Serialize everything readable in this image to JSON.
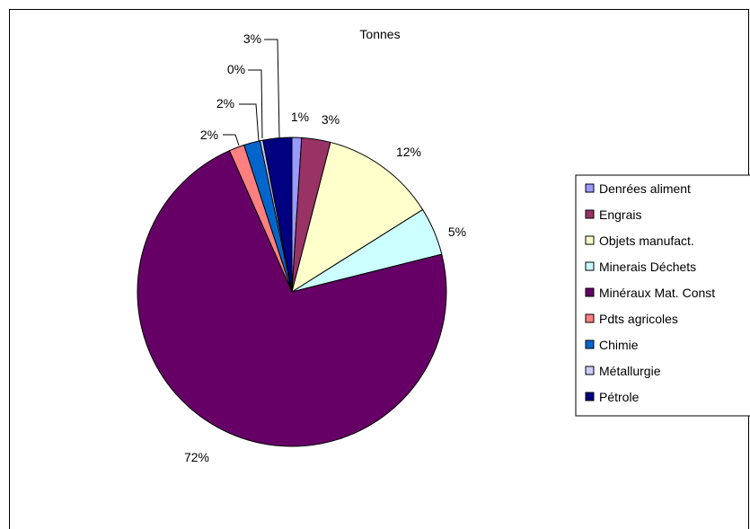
{
  "chart_data": {
    "type": "pie",
    "title": "Tonnes",
    "legend_position": "right",
    "slices": [
      {
        "name": "Denrées aliment",
        "value": 1,
        "label": "1%",
        "color": "#9999ff"
      },
      {
        "name": "Engrais",
        "value": 3,
        "label": "3%",
        "color": "#993366"
      },
      {
        "name": "Objets manufact.",
        "value": 12,
        "label": "12%",
        "color": "#ffffcc"
      },
      {
        "name": "Minerais Déchets",
        "value": 5,
        "label": "5%",
        "color": "#ccffff"
      },
      {
        "name": "Minéraux Mat. Const",
        "value": 72,
        "label": "72%",
        "color": "#660066"
      },
      {
        "name": "Pdts agricoles",
        "value": 1.6,
        "label": "2%",
        "color": "#ff8080"
      },
      {
        "name": "Chimie",
        "value": 1.7,
        "label": "2%",
        "color": "#0066cc"
      },
      {
        "name": "Métallurgie",
        "value": 0.3,
        "label": "0%",
        "color": "#ccccff"
      },
      {
        "name": "Pétrole",
        "value": 3,
        "label": "3%",
        "color": "#000080"
      }
    ]
  }
}
